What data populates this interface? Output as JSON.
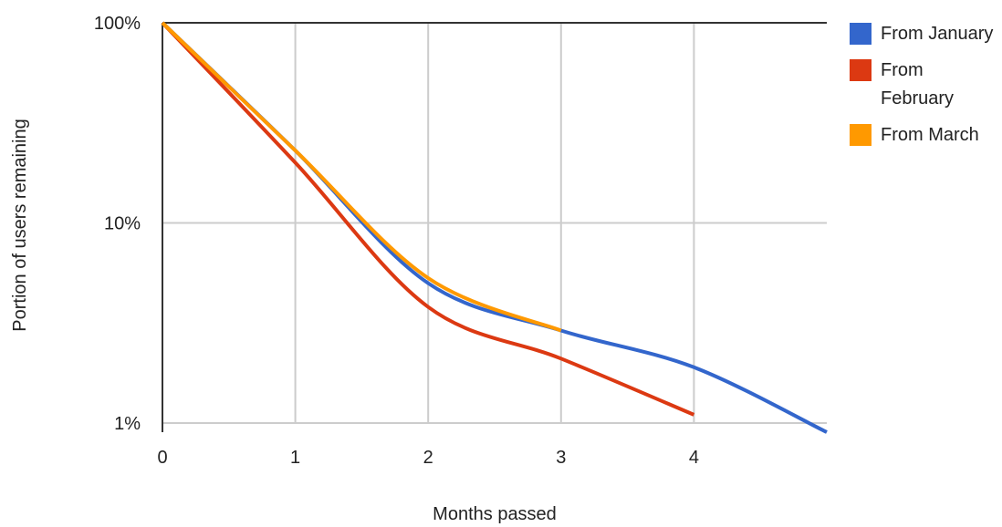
{
  "chart_data": {
    "type": "line",
    "title": "",
    "xlabel": "Months passed",
    "ylabel": "Portion of users remaining",
    "y_scale": "log",
    "xlim": [
      0,
      5
    ],
    "ylim": [
      1,
      100
    ],
    "x_ticks": [
      "0",
      "1",
      "2",
      "3",
      "4"
    ],
    "y_ticks": [
      {
        "value": 100,
        "label": "100%"
      },
      {
        "value": 10,
        "label": "10%"
      },
      {
        "value": 1,
        "label": "1%"
      }
    ],
    "grid": true,
    "legend_position": "right",
    "series": [
      {
        "name": "From January",
        "color": "#3366cc",
        "x": [
          0,
          1,
          2,
          3,
          4,
          5
        ],
        "y": [
          100,
          23,
          5,
          2.9,
          1.9,
          0.9
        ]
      },
      {
        "name": "From February",
        "color": "#dc3912",
        "x": [
          0,
          1,
          2,
          3,
          4
        ],
        "y": [
          100,
          20,
          3.8,
          2.1,
          1.1
        ]
      },
      {
        "name": "From March",
        "color": "#ff9900",
        "x": [
          0,
          1,
          2,
          3
        ],
        "y": [
          100,
          23,
          5.3,
          2.9
        ]
      }
    ]
  },
  "legend": {
    "items": [
      {
        "label": "From January",
        "color": "#3366cc"
      },
      {
        "label": "From February",
        "color": "#dc3912"
      },
      {
        "label": "From March",
        "color": "#ff9900"
      }
    ]
  }
}
